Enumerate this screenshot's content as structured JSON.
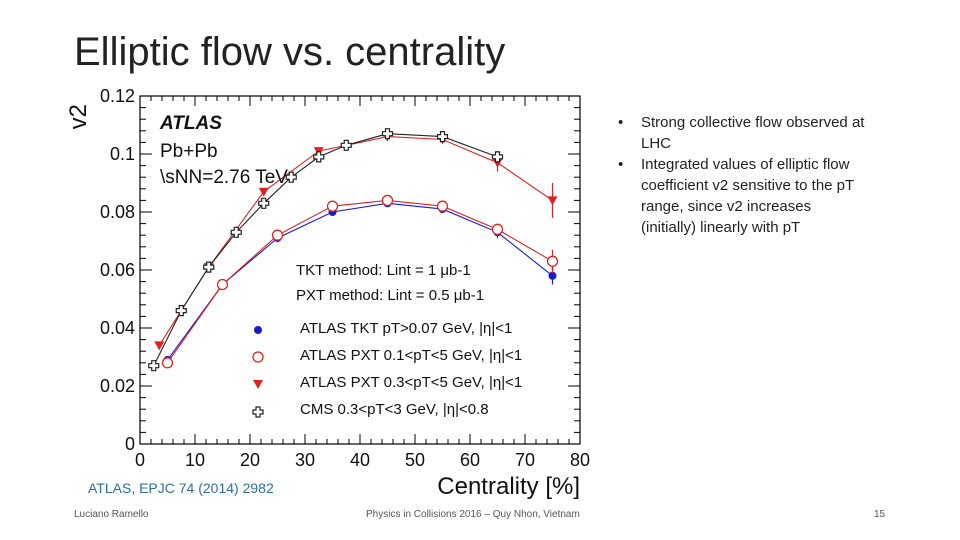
{
  "slide": {
    "title": "Elliptic flow vs. centrality",
    "reference": "ATLAS, EPJC 74 (2014) 2982",
    "footer_left": "Luciano Ramello",
    "footer_center": "Physics in Collisions 2016 – Quy Nhon, Vietnam",
    "footer_right": "15",
    "bullets": [
      "Strong collective flow observed at LHC",
      "Integrated values of elliptic flow coefficient v2 sensitive to the pT range, since v2 increases (initially) linearly with pT"
    ]
  },
  "chart_data": {
    "type": "scatter",
    "xlabel": "Centrality [%]",
    "ylabel": "v2",
    "xlim": [
      0,
      80
    ],
    "ylim": [
      0,
      0.12
    ],
    "xticks": [
      0,
      10,
      20,
      30,
      40,
      50,
      60,
      70,
      80
    ],
    "yticks": [
      0,
      0.02,
      0.04,
      0.06,
      0.08,
      0.1,
      0.12
    ],
    "ytick_labels": [
      "0",
      "0.02",
      "0.04",
      "0.06",
      "0.08",
      "0.1",
      "0.12"
    ],
    "annotations": {
      "experiment": "ATLAS",
      "system": "Pb+Pb",
      "energy": "\\sNN=2.76 TeV",
      "tkt_method": "TKT method: Lint = 1 μb-1",
      "pxt_method": "PXT method: Lint = 0.5 μb-1"
    },
    "series": [
      {
        "name": "ATLAS TKT pT>0.07 GeV, |η|<1",
        "marker": "filled-circle",
        "color": "#1a1acc",
        "x": [
          5,
          15,
          25,
          35,
          45,
          55,
          65,
          75
        ],
        "y": [
          0.029,
          0.055,
          0.071,
          0.08,
          0.083,
          0.081,
          0.073,
          0.058
        ],
        "yerr": [
          0.001,
          0.001,
          0.001,
          0.001,
          0.001,
          0.001,
          0.002,
          0.003
        ]
      },
      {
        "name": "ATLAS PXT 0.1<pT<5 GeV, |η|<1",
        "marker": "open-circle",
        "color": "#dd2222",
        "x": [
          5,
          15,
          25,
          35,
          45,
          55,
          65,
          75
        ],
        "y": [
          0.028,
          0.055,
          0.072,
          0.082,
          0.084,
          0.082,
          0.074,
          0.063
        ],
        "yerr": [
          0.001,
          0.001,
          0.001,
          0.001,
          0.001,
          0.001,
          0.002,
          0.004
        ]
      },
      {
        "name": "ATLAS PXT 0.3<pT<5 GeV, |η|<1",
        "marker": "filled-triangle-down",
        "color": "#dd2222",
        "x": [
          3.5,
          12.5,
          22.5,
          32.5,
          45,
          55,
          65,
          75
        ],
        "y": [
          0.034,
          0.061,
          0.087,
          0.101,
          0.106,
          0.105,
          0.097,
          0.084
        ],
        "yerr": [
          0.001,
          0.001,
          0.001,
          0.001,
          0.001,
          0.001,
          0.003,
          0.006
        ]
      },
      {
        "name": "CMS 0.3<pT<3 GeV, |η|<0.8",
        "marker": "open-cross",
        "color": "#222222",
        "x": [
          2.5,
          7.5,
          12.5,
          17.5,
          22.5,
          27.5,
          32.5,
          37.5,
          45,
          55,
          65
        ],
        "y": [
          0.027,
          0.046,
          0.061,
          0.073,
          0.083,
          0.092,
          0.099,
          0.103,
          0.107,
          0.106,
          0.099
        ],
        "yerr": [
          0.001,
          0.001,
          0.001,
          0.001,
          0.001,
          0.001,
          0.001,
          0.001,
          0.001,
          0.001,
          0.002
        ]
      }
    ]
  }
}
